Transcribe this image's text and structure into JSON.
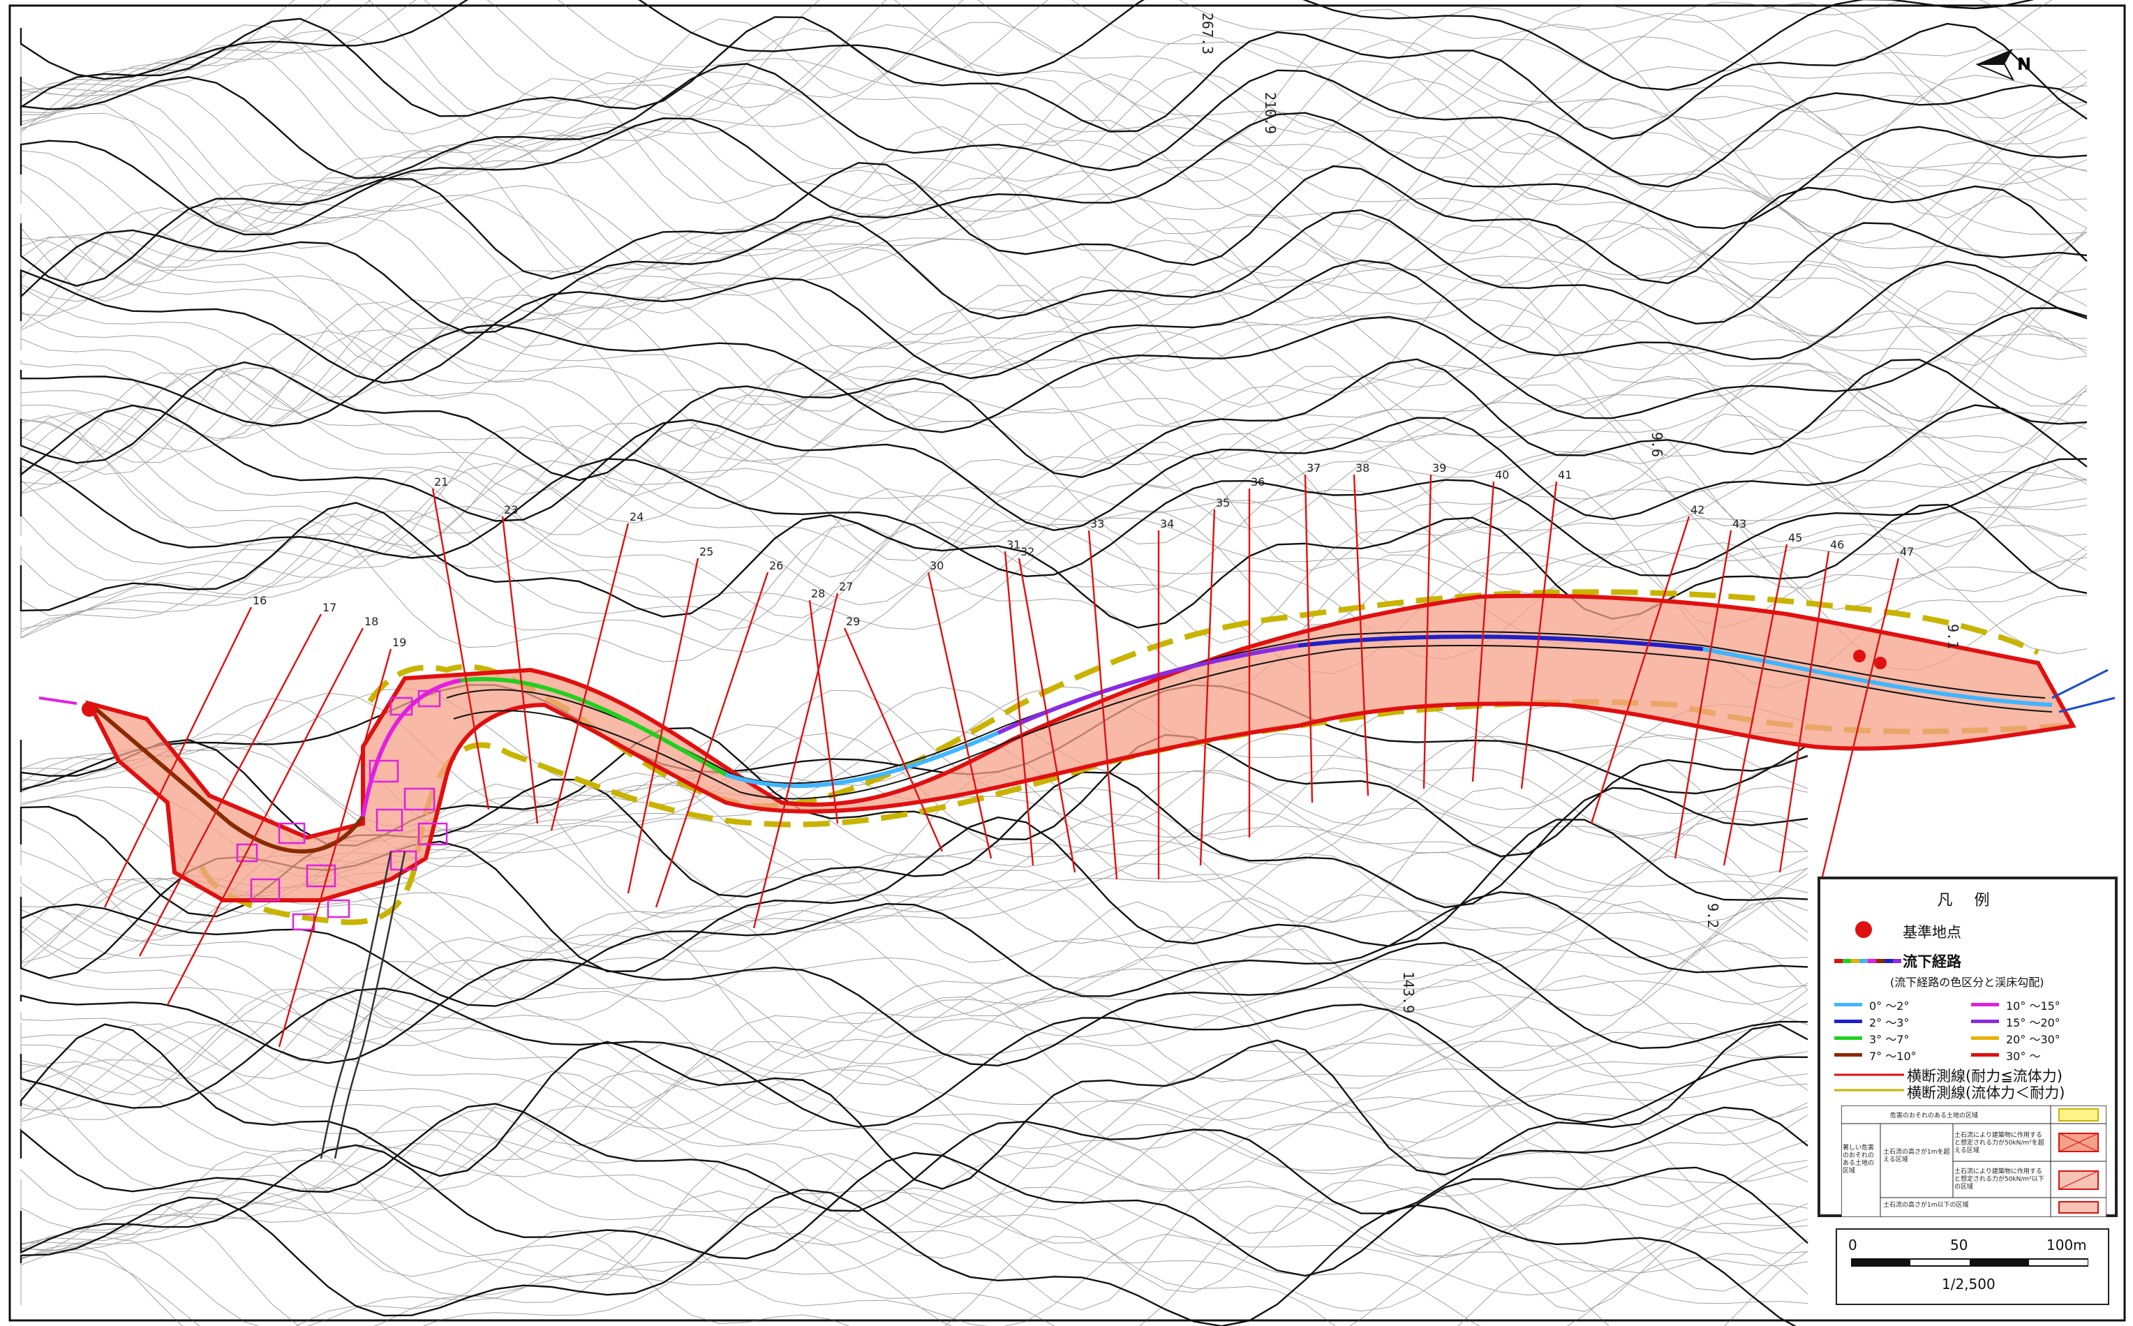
{
  "map": {
    "contour_labels": [
      "267.3",
      "210.9",
      "143.9",
      "9.6",
      "9.2",
      "9.1"
    ],
    "section_numbers": [
      "16",
      "17",
      "18",
      "19",
      "21",
      "23",
      "24",
      "25",
      "26",
      "27",
      "28",
      "29",
      "30",
      "31",
      "32",
      "33",
      "34",
      "35",
      "36",
      "37",
      "38",
      "39",
      "40",
      "41",
      "42",
      "43",
      "45",
      "46",
      "47"
    ],
    "north_label": "N",
    "colors": {
      "hazard_fill": "#f5a28a",
      "hazard_outline": "#e01010",
      "boundary_dashed": "#c8b400",
      "cross_section": "#e01010",
      "contour": "#111111"
    }
  },
  "legend": {
    "title": "凡 例",
    "base_point": "基準地点",
    "flow_path": "流下経路",
    "flow_path_note": "(流下経路の色区分と渓床勾配)",
    "gradients": [
      {
        "label": "0° ～2°",
        "color": "#3fb6ff"
      },
      {
        "label": "10° ～15°",
        "color": "#e020e0"
      },
      {
        "label": "2° ～3°",
        "color": "#2020c8"
      },
      {
        "label": "15° ～20°",
        "color": "#8a2be2"
      },
      {
        "label": "3° ～7°",
        "color": "#20d020"
      },
      {
        "label": "20° ～30°",
        "color": "#e8b000"
      },
      {
        "label": "7° ～10°",
        "color": "#8b2a00"
      },
      {
        "label": "30° ～",
        "color": "#e01010"
      }
    ],
    "cross_line_1": "横断測線(耐力≦流体力)",
    "cross_line_2": "横断測線(流体力＜耐力)",
    "table": {
      "row0": "危害のおそれのある土地の区域",
      "left": "著しい危害のおそれのある土地の区域",
      "mid1": "土石流の高さが1mを超える区域",
      "r1": "土石流により建築物に作用すると想定される力が50kN/m²を超える区域",
      "r2": "土石流により建築物に作用すると想定される力が50kN/m²以下の区域",
      "r3": "土石流の高さが1m以下の区域"
    }
  },
  "scale": {
    "ticks": [
      "0",
      "50",
      "100m"
    ],
    "ratio": "1/2,500"
  }
}
